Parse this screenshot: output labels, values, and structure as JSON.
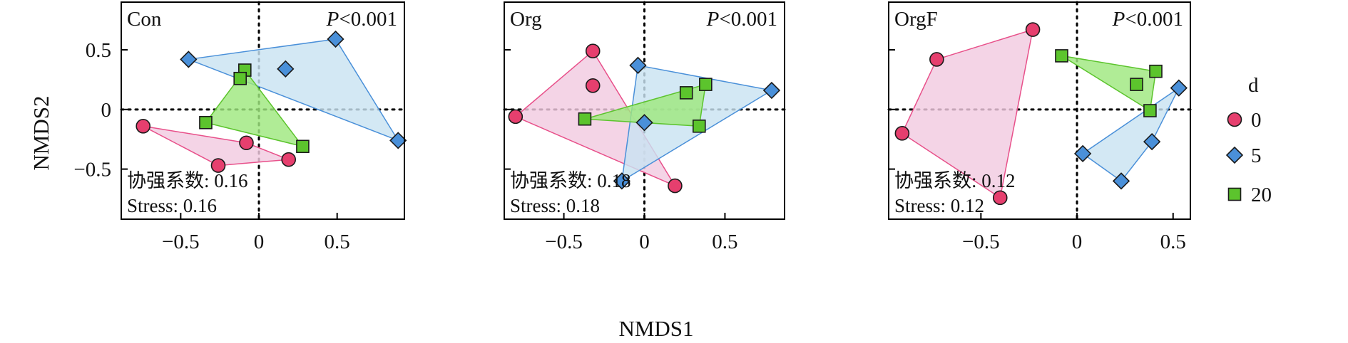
{
  "chart_data": {
    "type": "scatter",
    "xlabel": "NMDS1",
    "ylabel": "NMDS2",
    "ylim": [
      -0.92,
      0.9
    ],
    "yticks": [
      0.5,
      0,
      -0.5
    ],
    "ytick_labels": [
      "0.5",
      "0",
      "−0.5"
    ],
    "p_text": "<0.001",
    "p_italic": "P",
    "stress_prefix": "Stress: ",
    "coef_prefix": "协强系数: ",
    "groups": [
      {
        "key": "0",
        "label": "0",
        "marker": "circle",
        "fill": "#f2cbe0",
        "marker_color": "#e63f6e",
        "stroke": "#e8508a"
      },
      {
        "key": "5",
        "label": "5",
        "marker": "diamond",
        "fill": "#c9e3f1",
        "marker_color": "#4a90d9",
        "stroke": "#4a90d9"
      },
      {
        "key": "20",
        "label": "20",
        "marker": "square",
        "fill": "#9fe87f",
        "marker_color": "#5cc42d",
        "stroke": "#5cc42d"
      }
    ],
    "legend": {
      "title": "d",
      "position": "right"
    },
    "panels": [
      {
        "label": "Con",
        "xlim": [
          -0.88,
          0.93
        ],
        "xticks": [
          -0.5,
          0,
          0.5
        ],
        "xtick_labels": [
          "−0.5",
          "0",
          "0.5"
        ],
        "coef": "0.16",
        "stress": "0.16",
        "points": {
          "0": [
            [
              -0.74,
              -0.14
            ],
            [
              -0.08,
              -0.28
            ],
            [
              0.19,
              -0.42
            ],
            [
              -0.26,
              -0.47
            ]
          ],
          "5": [
            [
              -0.45,
              0.42
            ],
            [
              0.49,
              0.59
            ],
            [
              0.17,
              0.34
            ],
            [
              0.89,
              -0.26
            ]
          ],
          "20": [
            [
              -0.09,
              0.33
            ],
            [
              -0.12,
              0.26
            ],
            [
              -0.34,
              -0.11
            ],
            [
              0.28,
              -0.31
            ]
          ]
        }
      },
      {
        "label": "Org",
        "xlim": [
          -0.87,
          0.87
        ],
        "xticks": [
          -0.5,
          0,
          0.5
        ],
        "xtick_labels": [
          "−0.5",
          "0",
          "0.5"
        ],
        "coef": "0.18",
        "stress": "0.18",
        "points": {
          "0": [
            [
              -0.32,
              0.49
            ],
            [
              -0.32,
              0.2
            ],
            [
              -0.8,
              -0.06
            ],
            [
              0.19,
              -0.64
            ]
          ],
          "5": [
            [
              -0.04,
              0.37
            ],
            [
              0.79,
              0.16
            ],
            [
              0.0,
              -0.11
            ],
            [
              -0.14,
              -0.6
            ]
          ],
          "20": [
            [
              -0.37,
              -0.08
            ],
            [
              0.26,
              0.14
            ],
            [
              0.38,
              0.21
            ],
            [
              0.34,
              -0.14
            ]
          ]
        }
      },
      {
        "label": "OrgF",
        "xlim": [
          -0.98,
          0.59
        ],
        "xticks": [
          -0.5,
          0,
          0.5
        ],
        "xtick_labels": [
          "−0.5",
          "0",
          "0.5"
        ],
        "coef": "0.12",
        "stress": "0.12",
        "points": {
          "0": [
            [
              -0.73,
              0.42
            ],
            [
              -0.23,
              0.67
            ],
            [
              -0.91,
              -0.2
            ],
            [
              -0.4,
              -0.74
            ]
          ],
          "5": [
            [
              0.53,
              0.18
            ],
            [
              0.03,
              -0.37
            ],
            [
              0.39,
              -0.27
            ],
            [
              0.23,
              -0.6
            ]
          ],
          "20": [
            [
              -0.08,
              0.45
            ],
            [
              0.41,
              0.32
            ],
            [
              0.31,
              0.21
            ],
            [
              0.38,
              -0.01
            ]
          ]
        }
      }
    ]
  }
}
